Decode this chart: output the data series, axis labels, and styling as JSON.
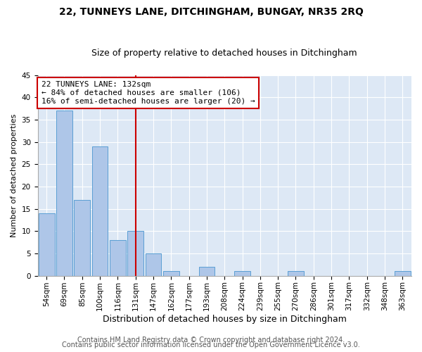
{
  "title": "22, TUNNEYS LANE, DITCHINGHAM, BUNGAY, NR35 2RQ",
  "subtitle": "Size of property relative to detached houses in Ditchingham",
  "xlabel": "Distribution of detached houses by size in Ditchingham",
  "ylabel": "Number of detached properties",
  "categories": [
    "54sqm",
    "69sqm",
    "85sqm",
    "100sqm",
    "116sqm",
    "131sqm",
    "147sqm",
    "162sqm",
    "177sqm",
    "193sqm",
    "208sqm",
    "224sqm",
    "239sqm",
    "255sqm",
    "270sqm",
    "286sqm",
    "301sqm",
    "317sqm",
    "332sqm",
    "348sqm",
    "363sqm"
  ],
  "values": [
    14,
    37,
    17,
    29,
    8,
    10,
    5,
    1,
    0,
    2,
    0,
    1,
    0,
    0,
    1,
    0,
    0,
    0,
    0,
    0,
    1
  ],
  "bar_color": "#aec6e8",
  "bar_edge_color": "#5a9fd4",
  "vline_x": 5,
  "vline_color": "#cc0000",
  "annotation_line1": "22 TUNNEYS LANE: 132sqm",
  "annotation_line2": "← 84% of detached houses are smaller (106)",
  "annotation_line3": "16% of semi-detached houses are larger (20) →",
  "annotation_box_color": "#ffffff",
  "annotation_box_edge": "#cc0000",
  "ylim": [
    0,
    45
  ],
  "yticks": [
    0,
    5,
    10,
    15,
    20,
    25,
    30,
    35,
    40,
    45
  ],
  "bg_color": "#dde8f5",
  "footer1": "Contains HM Land Registry data © Crown copyright and database right 2024.",
  "footer2": "Contains public sector information licensed under the Open Government Licence v3.0.",
  "title_fontsize": 10,
  "subtitle_fontsize": 9,
  "xlabel_fontsize": 9,
  "ylabel_fontsize": 8,
  "tick_fontsize": 7.5,
  "annotation_fontsize": 8,
  "footer_fontsize": 7
}
